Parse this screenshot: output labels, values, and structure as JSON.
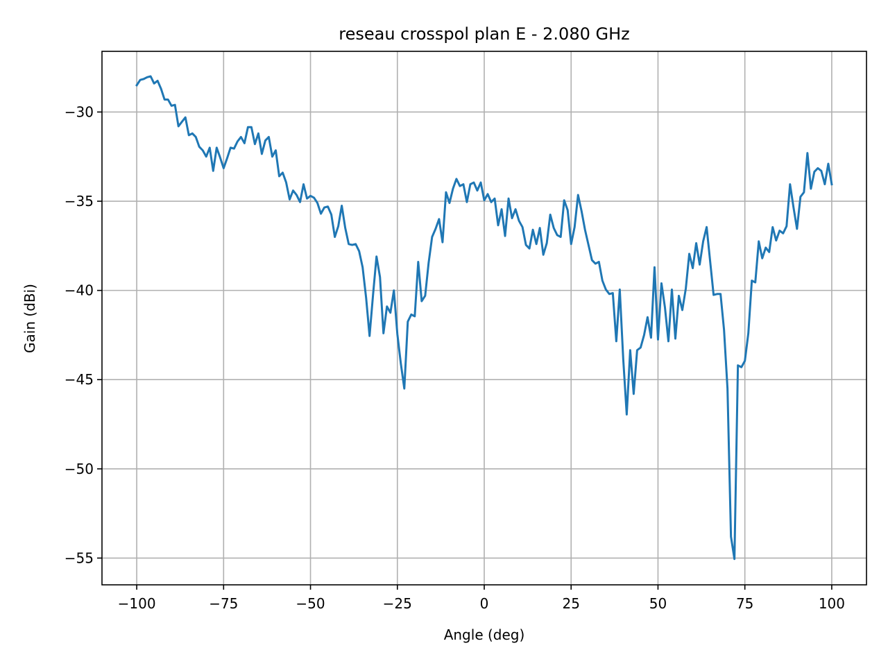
{
  "chart_data": {
    "type": "line",
    "title": "reseau crosspol plan E - 2.080 GHz",
    "xlabel": "Angle (deg)",
    "ylabel": "Gain (dBi)",
    "xlim": [
      -110,
      110
    ],
    "ylim": [
      -56.5,
      -26.6
    ],
    "grid": true,
    "xticks": [
      -100,
      -75,
      -50,
      -25,
      0,
      25,
      50,
      75,
      100
    ],
    "xtick_labels": [
      "−100",
      "−75",
      "−50",
      "−25",
      "0",
      "25",
      "50",
      "75",
      "100"
    ],
    "yticks": [
      -30,
      -35,
      -40,
      -45,
      -50,
      -55
    ],
    "ytick_labels": [
      "−30",
      "−35",
      "−40",
      "−45",
      "−50",
      "−55"
    ],
    "series": [
      {
        "color": "#1f77b4",
        "x": [
          -100,
          -99,
          -98,
          -97,
          -96,
          -95,
          -94,
          -93,
          -92,
          -91,
          -90,
          -89,
          -88,
          -87,
          -86,
          -85,
          -84,
          -83,
          -82,
          -81,
          -80,
          -79,
          -78,
          -77,
          -76,
          -75,
          -74,
          -73,
          -72,
          -71,
          -70,
          -69,
          -68,
          -67,
          -66,
          -65,
          -64,
          -63,
          -62,
          -61,
          -60,
          -59,
          -58,
          -57,
          -56,
          -55,
          -54,
          -53,
          -52,
          -51,
          -50,
          -49,
          -48,
          -47,
          -46,
          -45,
          -44,
          -43,
          -42,
          -41,
          -40,
          -39,
          -38,
          -37,
          -36,
          -35,
          -34,
          -33,
          -32,
          -31,
          -30,
          -29,
          -28,
          -27,
          -26,
          -25,
          -24,
          -23,
          -22,
          -21,
          -20,
          -19,
          -18,
          -17,
          -16,
          -15,
          -14,
          -13,
          -12,
          -11,
          -10,
          -9,
          -8,
          -7,
          -6,
          -5,
          -4,
          -3,
          -2,
          -1,
          0,
          1,
          2,
          3,
          4,
          5,
          6,
          7,
          8,
          9,
          10,
          11,
          12,
          13,
          14,
          15,
          16,
          17,
          18,
          19,
          20,
          21,
          22,
          23,
          24,
          25,
          26,
          27,
          28,
          29,
          30,
          31,
          32,
          33,
          34,
          35,
          36,
          37,
          38,
          39,
          40,
          41,
          42,
          43,
          44,
          45,
          46,
          47,
          48,
          49,
          50,
          51,
          52,
          53,
          54,
          55,
          56,
          57,
          58,
          59,
          60,
          61,
          62,
          63,
          64,
          65,
          66,
          67,
          68,
          69,
          70,
          71,
          72,
          73,
          74,
          75,
          76,
          77,
          78,
          79,
          80,
          81,
          82,
          83,
          84,
          85,
          86,
          87,
          88,
          89,
          90,
          91,
          92,
          93,
          94,
          95,
          96,
          97,
          98,
          99,
          100
        ],
        "y": [
          -28.5,
          -28.2,
          -28.15,
          -28.05,
          -28.0,
          -28.4,
          -28.25,
          -28.7,
          -29.3,
          -29.3,
          -29.65,
          -29.6,
          -30.8,
          -30.55,
          -30.3,
          -31.3,
          -31.2,
          -31.4,
          -31.95,
          -32.15,
          -32.5,
          -32.0,
          -33.3,
          -32.0,
          -32.55,
          -33.15,
          -32.6,
          -32.0,
          -32.05,
          -31.65,
          -31.4,
          -31.75,
          -30.85,
          -30.85,
          -31.8,
          -31.2,
          -32.35,
          -31.6,
          -31.4,
          -32.5,
          -32.15,
          -33.6,
          -33.4,
          -33.95,
          -34.9,
          -34.4,
          -34.65,
          -35.05,
          -34.05,
          -34.85,
          -34.7,
          -34.8,
          -35.1,
          -35.7,
          -35.35,
          -35.3,
          -35.75,
          -37.0,
          -36.4,
          -35.25,
          -36.5,
          -37.4,
          -37.45,
          -37.4,
          -37.8,
          -38.7,
          -40.4,
          -42.55,
          -40.25,
          -38.1,
          -39.25,
          -42.4,
          -40.9,
          -41.25,
          -40.0,
          -42.45,
          -44.1,
          -45.5,
          -41.75,
          -41.35,
          -41.45,
          -38.4,
          -40.6,
          -40.3,
          -38.45,
          -37.0,
          -36.55,
          -36.0,
          -37.3,
          -34.5,
          -35.1,
          -34.3,
          -33.75,
          -34.15,
          -34.05,
          -35.05,
          -34.05,
          -33.95,
          -34.4,
          -33.95,
          -34.95,
          -34.6,
          -35.05,
          -34.85,
          -36.35,
          -35.45,
          -36.95,
          -34.85,
          -35.95,
          -35.45,
          -36.1,
          -36.45,
          -37.45,
          -37.65,
          -36.6,
          -37.4,
          -36.5,
          -38.0,
          -37.35,
          -35.75,
          -36.5,
          -36.9,
          -37.0,
          -34.95,
          -35.5,
          -37.4,
          -36.45,
          -34.65,
          -35.55,
          -36.6,
          -37.45,
          -38.3,
          -38.5,
          -38.4,
          -39.45,
          -39.95,
          -40.2,
          -40.15,
          -42.85,
          -39.95,
          -43.85,
          -46.95,
          -43.35,
          -45.8,
          -43.35,
          -43.2,
          -42.5,
          -41.5,
          -42.65,
          -38.7,
          -42.75,
          -39.6,
          -40.95,
          -42.85,
          -39.95,
          -42.7,
          -40.3,
          -41.1,
          -39.9,
          -37.95,
          -38.75,
          -37.35,
          -38.55,
          -37.25,
          -36.45,
          -38.35,
          -40.25,
          -40.2,
          -40.2,
          -42.2,
          -45.5,
          -53.8,
          -55.05,
          -44.2,
          -44.3,
          -43.95,
          -42.4,
          -39.45,
          -39.55,
          -37.25,
          -38.2,
          -37.6,
          -37.85,
          -36.45,
          -37.2,
          -36.65,
          -36.8,
          -36.4,
          -34.05,
          -35.35,
          -36.55,
          -34.75,
          -34.5,
          -32.3,
          -34.3,
          -33.35,
          -33.15,
          -33.3,
          -34.05,
          -32.9,
          -34.05
        ]
      }
    ]
  }
}
